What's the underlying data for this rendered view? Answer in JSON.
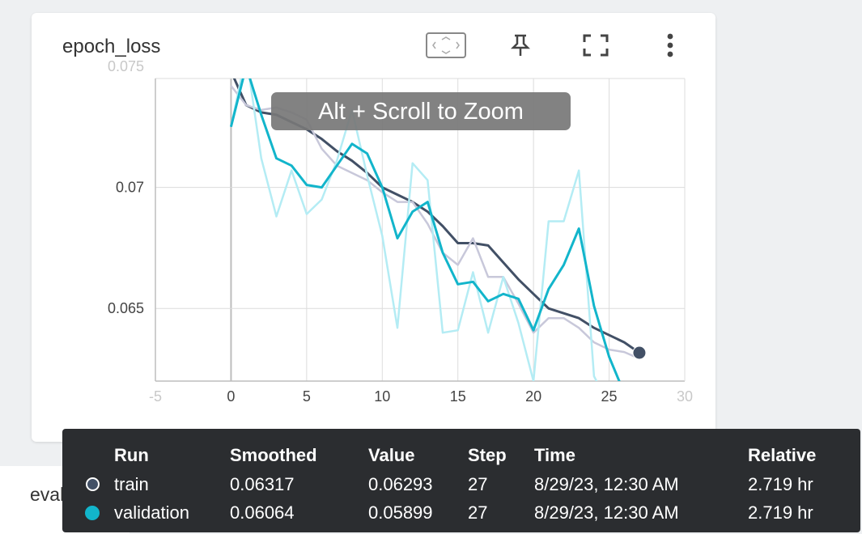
{
  "card": {
    "title": "epoch_loss",
    "icons": [
      "fit-domain-icon",
      "pin-icon",
      "fullscreen-icon",
      "more-vert-icon"
    ]
  },
  "next_card_title": "evaluation_accuracy_vs_iterations",
  "zoom_hint": "Alt + Scroll to Zoom",
  "colors": {
    "train": "#425066",
    "train_raw": "#c8c8da",
    "validation": "#12b5cb",
    "validation_raw": "#b4ecf4",
    "grid": "#dcdcdc",
    "tooltip_bg": "#2b2d30"
  },
  "chart_data": {
    "type": "line",
    "title": "epoch_loss",
    "xlabel": "",
    "ylabel": "",
    "xlim": [
      -5,
      30
    ],
    "ylim": [
      0.062,
      0.0745
    ],
    "x_ticks": [
      "-5",
      "0",
      "5",
      "10",
      "15",
      "20",
      "25",
      "30"
    ],
    "y_ticks": [
      "0.075",
      "0.07",
      "0.065"
    ],
    "grid": true,
    "series": [
      {
        "name": "train",
        "kind": "smoothed",
        "x": [
          0,
          1,
          2,
          3,
          4,
          5,
          6,
          7,
          8,
          9,
          10,
          11,
          12,
          13,
          14,
          15,
          16,
          17,
          18,
          19,
          20,
          21,
          22,
          23,
          24,
          25,
          26,
          27
        ],
        "values": [
          0.0748,
          0.0734,
          0.0731,
          0.073,
          0.0727,
          0.0724,
          0.072,
          0.0715,
          0.0711,
          0.0706,
          0.07,
          0.0697,
          0.0694,
          0.069,
          0.0684,
          0.0677,
          0.0677,
          0.0676,
          0.0669,
          0.0662,
          0.0656,
          0.065,
          0.0648,
          0.0646,
          0.0642,
          0.0639,
          0.0636,
          0.06317
        ]
      },
      {
        "name": "train",
        "kind": "raw",
        "x": [
          0,
          1,
          2,
          3,
          4,
          5,
          6,
          7,
          8,
          9,
          10,
          11,
          12,
          13,
          14,
          15,
          16,
          17,
          18,
          19,
          20,
          21,
          22,
          23,
          24,
          25,
          26,
          27
        ],
        "values": [
          0.0742,
          0.0734,
          0.0732,
          0.0733,
          0.0731,
          0.0728,
          0.0716,
          0.0709,
          0.0706,
          0.0703,
          0.0698,
          0.0694,
          0.0694,
          0.0685,
          0.0673,
          0.0668,
          0.0679,
          0.0663,
          0.0663,
          0.0652,
          0.064,
          0.0646,
          0.0646,
          0.0642,
          0.0636,
          0.0633,
          0.0632,
          0.06293
        ]
      },
      {
        "name": "validation",
        "kind": "raw",
        "x": [
          0,
          1,
          2,
          3,
          4,
          5,
          6,
          7,
          8,
          9,
          10,
          11,
          12,
          13,
          14,
          15,
          16,
          17,
          18,
          19,
          20,
          21,
          22,
          23,
          24,
          25,
          26,
          27
        ],
        "values": [
          0.0725,
          0.0755,
          0.0712,
          0.0688,
          0.0707,
          0.0689,
          0.0695,
          0.0711,
          0.0732,
          0.0705,
          0.068,
          0.0642,
          0.071,
          0.0703,
          0.064,
          0.0641,
          0.0665,
          0.064,
          0.0663,
          0.0644,
          0.062,
          0.0686,
          0.0686,
          0.0707,
          0.0622,
          0.061,
          0.06,
          0.05899
        ]
      },
      {
        "name": "validation",
        "kind": "smoothed",
        "x": [
          0,
          1,
          2,
          3,
          4,
          5,
          6,
          7,
          8,
          9,
          10,
          11,
          12,
          13,
          14,
          15,
          16,
          17,
          18,
          19,
          20,
          21,
          22,
          23,
          24,
          25,
          26,
          27
        ],
        "values": [
          0.0725,
          0.075,
          0.073,
          0.0712,
          0.0709,
          0.0701,
          0.07,
          0.0709,
          0.0718,
          0.0714,
          0.07,
          0.0679,
          0.069,
          0.0694,
          0.0673,
          0.066,
          0.0661,
          0.0653,
          0.0656,
          0.0654,
          0.0641,
          0.0658,
          0.0668,
          0.0683,
          0.0651,
          0.063,
          0.0615,
          0.06064
        ]
      }
    ]
  },
  "tooltip": {
    "headers": [
      "Run",
      "Smoothed",
      "Value",
      "Step",
      "Time",
      "Relative"
    ],
    "rows": [
      {
        "run": "train",
        "smoothed": "0.06317",
        "value": "0.06293",
        "step": "27",
        "time": "8/29/23, 12:30 AM",
        "relative": "2.719 hr"
      },
      {
        "run": "validation",
        "smoothed": "0.06064",
        "value": "0.05899",
        "step": "27",
        "time": "8/29/23, 12:30 AM",
        "relative": "2.719 hr"
      }
    ]
  }
}
